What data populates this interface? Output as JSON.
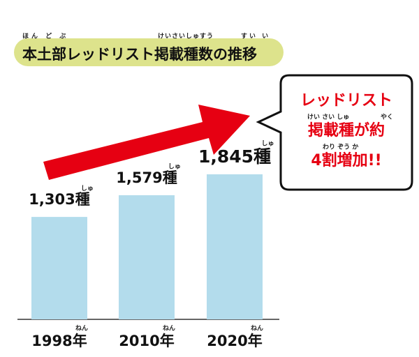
{
  "chart_data": {
    "type": "bar",
    "title": "本土部レッドリスト掲載種数の推移",
    "title_ruby": [
      "ほん ど ぶ",
      "けいさいしゅすう",
      "すい い"
    ],
    "categories": [
      "1998年",
      "2010年",
      "2020年"
    ],
    "category_ruby": "ねん",
    "values": [
      1303,
      1579,
      1845
    ],
    "value_labels": [
      "1,303種",
      "1,579種",
      "1,845種"
    ],
    "value_label_ruby": "しゅ",
    "color": "#b3dcec",
    "annotation": {
      "lines": [
        "レッドリスト",
        "掲載種が約",
        "4割増加!!"
      ],
      "ruby": [
        "けい  さい  しゅ",
        "やく",
        "わり  ぞう  か"
      ]
    }
  }
}
